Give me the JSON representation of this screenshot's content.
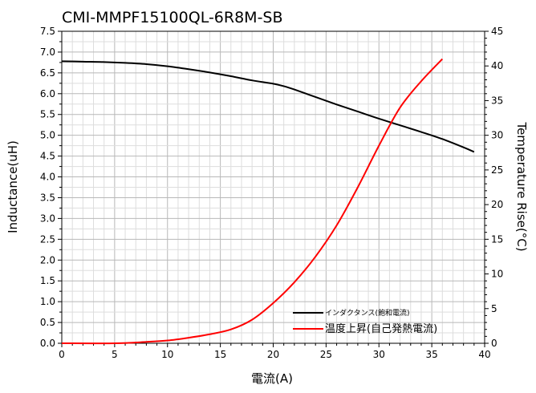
{
  "chart_data": {
    "type": "line",
    "title": "CMI-MMPF15100QL-6R8M-SB",
    "xlabel": "電流(A)",
    "ylabel_left": "Inductance(uH)",
    "ylabel_right": "Temperature Rise(°C)",
    "xlim": [
      0,
      40
    ],
    "ylim_left": [
      0,
      7.5
    ],
    "ylim_right": [
      0,
      45
    ],
    "xticks": [
      "0",
      "5",
      "10",
      "15",
      "20",
      "25",
      "30",
      "35",
      "40"
    ],
    "yticks_left": [
      "0.0",
      "0.5",
      "1.0",
      "1.5",
      "2.0",
      "2.5",
      "3.0",
      "3.5",
      "4.0",
      "4.5",
      "5.0",
      "5.5",
      "6.0",
      "6.5",
      "7.0",
      "7.5"
    ],
    "yticks_right": [
      "0",
      "5",
      "10",
      "15",
      "20",
      "25",
      "30",
      "35",
      "40",
      "45"
    ],
    "grid": true,
    "legend_position": "bottom-right",
    "series": [
      {
        "name": "インダクタンス(飽和電流)",
        "axis": "left",
        "color": "#000000",
        "x": [
          0,
          2,
          4,
          6,
          8,
          10,
          12,
          14,
          16,
          18,
          20,
          21,
          22,
          24,
          26,
          28,
          30,
          32,
          34,
          36,
          38,
          39
        ],
        "y": [
          6.78,
          6.77,
          6.76,
          6.74,
          6.71,
          6.66,
          6.59,
          6.51,
          6.42,
          6.32,
          6.24,
          6.18,
          6.1,
          5.92,
          5.74,
          5.57,
          5.4,
          5.24,
          5.08,
          4.91,
          4.71,
          4.6
        ]
      },
      {
        "name": "温度上昇(自己発熱電流)",
        "axis": "right",
        "color": "#ff0000",
        "x": [
          0,
          5,
          8,
          10,
          12,
          14,
          16,
          18,
          20,
          22,
          24,
          26,
          28,
          30,
          32,
          34,
          36
        ],
        "y": [
          0,
          0,
          0.2,
          0.4,
          0.8,
          1.3,
          2.0,
          3.4,
          5.8,
          8.8,
          12.5,
          17.0,
          22.5,
          28.5,
          34.0,
          37.8,
          41.0
        ]
      }
    ]
  }
}
